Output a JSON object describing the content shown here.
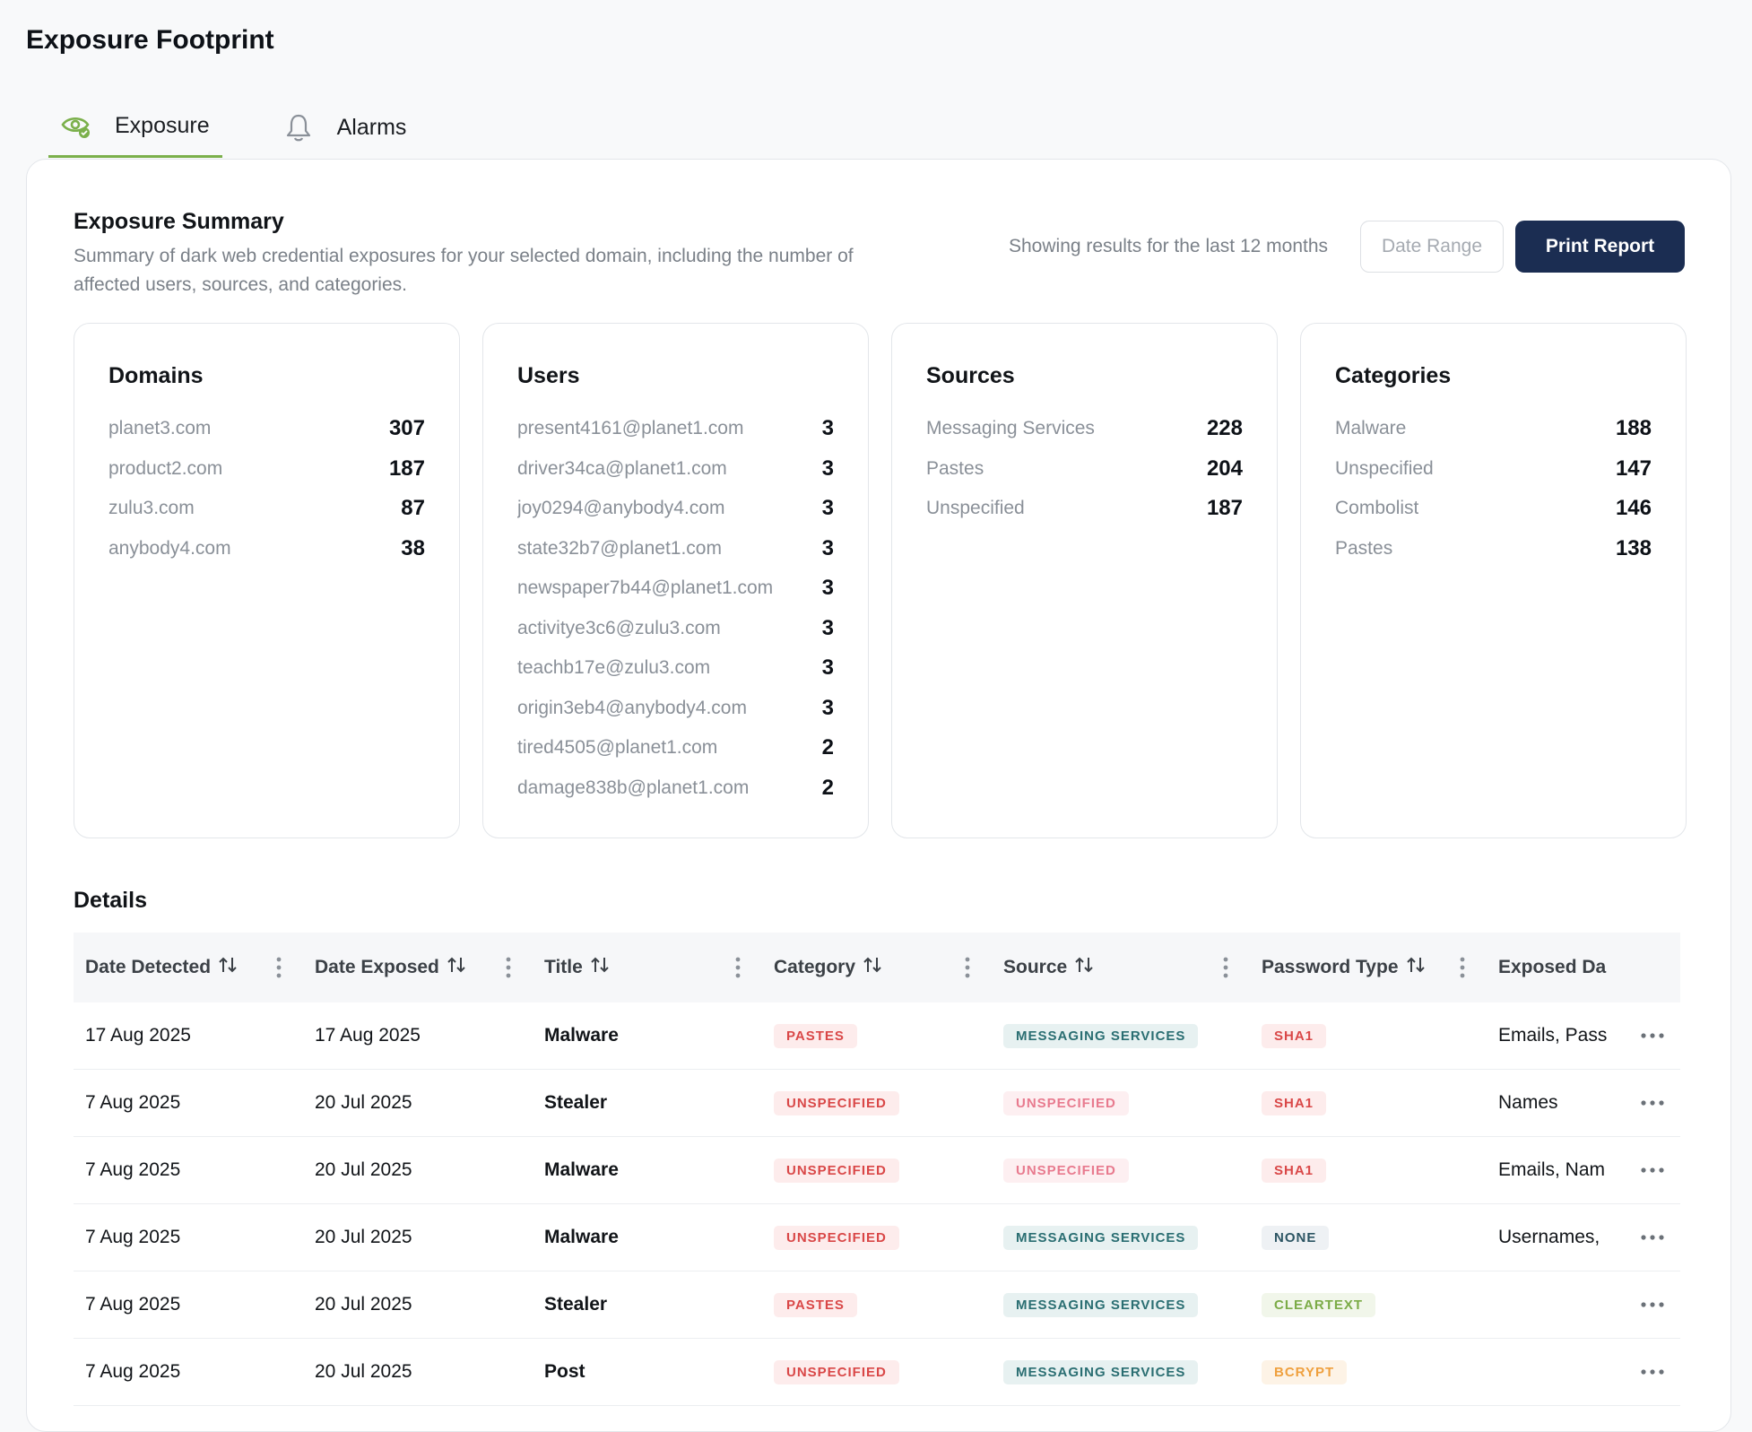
{
  "page": {
    "title": "Exposure Footprint"
  },
  "tabs": [
    {
      "label": "Exposure",
      "icon": "eye-icon",
      "active": true
    },
    {
      "label": "Alarms",
      "icon": "bell-icon",
      "active": false
    }
  ],
  "summary": {
    "title": "Exposure Summary",
    "description": "Summary of dark web credential exposures for your selected domain, including the number of affected users, sources, and categories.",
    "results_note": "Showing results for the last 12 months",
    "date_range_placeholder": "Date Range",
    "print_label": "Print Report"
  },
  "stats": {
    "domains": {
      "title": "Domains",
      "items": [
        {
          "label": "planet3.com",
          "value": "307"
        },
        {
          "label": "product2.com",
          "value": "187"
        },
        {
          "label": "zulu3.com",
          "value": "87"
        },
        {
          "label": "anybody4.com",
          "value": "38"
        }
      ]
    },
    "users": {
      "title": "Users",
      "items": [
        {
          "label": "present4161@planet1.com",
          "value": "3"
        },
        {
          "label": "driver34ca@planet1.com",
          "value": "3"
        },
        {
          "label": "joy0294@anybody4.com",
          "value": "3"
        },
        {
          "label": "state32b7@planet1.com",
          "value": "3"
        },
        {
          "label": "newspaper7b44@planet1.com",
          "value": "3"
        },
        {
          "label": "activitye3c6@zulu3.com",
          "value": "3"
        },
        {
          "label": "teachb17e@zulu3.com",
          "value": "3"
        },
        {
          "label": "origin3eb4@anybody4.com",
          "value": "3"
        },
        {
          "label": "tired4505@planet1.com",
          "value": "2"
        },
        {
          "label": "damage838b@planet1.com",
          "value": "2"
        }
      ]
    },
    "sources": {
      "title": "Sources",
      "items": [
        {
          "label": "Messaging Services",
          "value": "228"
        },
        {
          "label": "Pastes",
          "value": "204"
        },
        {
          "label": "Unspecified",
          "value": "187"
        }
      ]
    },
    "categories": {
      "title": "Categories",
      "items": [
        {
          "label": "Malware",
          "value": "188"
        },
        {
          "label": "Unspecified",
          "value": "147"
        },
        {
          "label": "Combolist",
          "value": "146"
        },
        {
          "label": "Pastes",
          "value": "138"
        }
      ]
    }
  },
  "details": {
    "title": "Details",
    "columns": [
      "Date Detected",
      "Date Exposed",
      "Title",
      "Category",
      "Source",
      "Password Type",
      "Exposed Da"
    ],
    "rows": [
      {
        "detected": "17 Aug 2025",
        "exposed": "17 Aug 2025",
        "title": "Malware",
        "category": "PASTES",
        "source": "MESSAGING SERVICES",
        "password": "SHA1",
        "data": "Emails, Pass"
      },
      {
        "detected": "7 Aug 2025",
        "exposed": "20 Jul 2025",
        "title": "Stealer",
        "category": "UNSPECIFIED",
        "source": "UNSPECIFIED",
        "password": "SHA1",
        "data": "Names"
      },
      {
        "detected": "7 Aug 2025",
        "exposed": "20 Jul 2025",
        "title": "Malware",
        "category": "UNSPECIFIED",
        "source": "UNSPECIFIED",
        "password": "SHA1",
        "data": "Emails, Nam"
      },
      {
        "detected": "7 Aug 2025",
        "exposed": "20 Jul 2025",
        "title": "Malware",
        "category": "UNSPECIFIED",
        "source": "MESSAGING SERVICES",
        "password": "NONE",
        "data": "Usernames,"
      },
      {
        "detected": "7 Aug 2025",
        "exposed": "20 Jul 2025",
        "title": "Stealer",
        "category": "PASTES",
        "source": "MESSAGING SERVICES",
        "password": "CLEARTEXT",
        "data": ""
      },
      {
        "detected": "7 Aug 2025",
        "exposed": "20 Jul 2025",
        "title": "Post",
        "category": "UNSPECIFIED",
        "source": "MESSAGING SERVICES",
        "password": "BCRYPT",
        "data": ""
      }
    ]
  },
  "colors": {
    "accent": "#7bb04b",
    "primary_button": "#1b2d52",
    "badge_red": "#d94747",
    "badge_pink": "#e87a8e",
    "badge_teal": "#2a6e72",
    "badge_green": "#7bab47",
    "badge_orange": "#efa03e"
  }
}
